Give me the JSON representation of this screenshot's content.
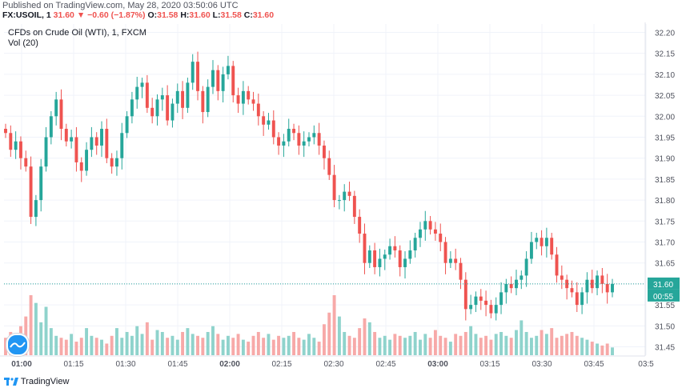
{
  "header": {
    "published": "Published on TradingView.com, May 28, 2020 03:50:06 UTC",
    "symbol": "FX:USOIL, 1",
    "last": "31.60",
    "change": "▼ −0.60 (−1.87%)",
    "o_label": "O:",
    "o_value": "31.58",
    "h_label": "H:",
    "h_value": "31.60",
    "l_label": "L:",
    "l_value": "31.58",
    "c_label": "C:",
    "c_value": "31.60"
  },
  "legend": {
    "title": "CFDs on Crude Oil (WTI), 1, FXCM",
    "volume": "Vol (20)"
  },
  "footer": {
    "brand": "TradingView"
  },
  "icons": {
    "volume_toggle": "volume-icon",
    "brand_logo": "tradingview-logo-icon"
  },
  "colors": {
    "up": "#26a69a",
    "down": "#ef5350",
    "up_vol": "#8fd3cc",
    "down_vol": "#f7a9a8",
    "price_line": "#26a69a"
  },
  "chart_data": {
    "type": "candlestick",
    "title": "CFDs on Crude Oil (WTI), 1, FXCM",
    "yticks": [
      "32.20",
      "32.15",
      "32.10",
      "32.05",
      "32.00",
      "31.95",
      "31.90",
      "31.85",
      "31.80",
      "31.75",
      "31.70",
      "31.65",
      "31.60",
      "31.55",
      "31.50",
      "31.45"
    ],
    "ylim": [
      31.43,
      32.22
    ],
    "xticks": [
      "01:00",
      "01:15",
      "01:30",
      "01:45",
      "02:00",
      "02:15",
      "02:30",
      "02:45",
      "03:00",
      "03:15",
      "03:30",
      "03:45",
      "03:5"
    ],
    "bold_xticks": [
      "01:00",
      "02:00",
      "03:00"
    ],
    "last_price": "31.60",
    "countdown": "00:55",
    "grid": true,
    "closes": [
      31.96,
      31.92,
      31.94,
      31.9,
      31.88,
      31.76,
      31.8,
      31.88,
      31.95,
      32.0,
      32.04,
      31.97,
      31.94,
      31.95,
      31.89,
      31.87,
      31.92,
      31.95,
      31.93,
      31.97,
      31.9,
      31.88,
      31.9,
      31.96,
      32.0,
      32.04,
      32.07,
      32.08,
      32.02,
      32.0,
      32.04,
      32.05,
      31.99,
      32.03,
      32.06,
      32.02,
      32.08,
      32.13,
      32.06,
      32.01,
      32.07,
      32.11,
      32.06,
      32.1,
      32.12,
      32.05,
      32.03,
      32.06,
      32.04,
      32.03,
      32.0,
      31.98,
      31.99,
      31.95,
      31.93,
      31.94,
      31.97,
      31.96,
      31.93,
      31.94,
      31.95,
      31.96,
      31.93,
      31.9,
      31.86,
      31.8,
      31.8,
      31.82,
      31.81,
      31.76,
      31.72,
      31.65,
      31.68,
      31.64,
      31.66,
      31.67,
      31.69,
      31.68,
      31.64,
      31.66,
      31.68,
      31.71,
      31.73,
      31.75,
      31.73,
      31.72,
      31.7,
      31.65,
      31.66,
      31.65,
      31.61,
      31.54,
      31.55,
      31.57,
      31.56,
      31.55,
      31.53,
      31.55,
      31.58,
      31.6,
      31.59,
      31.61,
      31.62,
      31.66,
      31.7,
      31.71,
      31.69,
      31.71,
      31.67,
      31.62,
      31.61,
      31.59,
      31.58,
      31.55,
      31.58,
      31.61,
      31.59,
      31.62,
      31.6,
      31.58,
      31.6
    ],
    "volumes": [
      9,
      12,
      6,
      15,
      20,
      31,
      27,
      17,
      25,
      14,
      10,
      9,
      8,
      11,
      7,
      9,
      14,
      10,
      9,
      8,
      6,
      10,
      14,
      9,
      12,
      10,
      15,
      11,
      17,
      8,
      13,
      12,
      9,
      10,
      8,
      12,
      14,
      11,
      10,
      9,
      12,
      15,
      11,
      8,
      10,
      9,
      11,
      8,
      7,
      10,
      12,
      9,
      11,
      8,
      10,
      9,
      10,
      12,
      9,
      8,
      11,
      9,
      7,
      16,
      22,
      31,
      20,
      12,
      10,
      9,
      14,
      19,
      17,
      12,
      9,
      10,
      8,
      11,
      10,
      9,
      10,
      12,
      8,
      11,
      9,
      13,
      10,
      9,
      7,
      11,
      10,
      12,
      15,
      11,
      9,
      10,
      8,
      11,
      12,
      10,
      9,
      13,
      18,
      12,
      9,
      10,
      13,
      11,
      14,
      9,
      10,
      11,
      12,
      10,
      9,
      8,
      7,
      6,
      5,
      6,
      4
    ]
  }
}
